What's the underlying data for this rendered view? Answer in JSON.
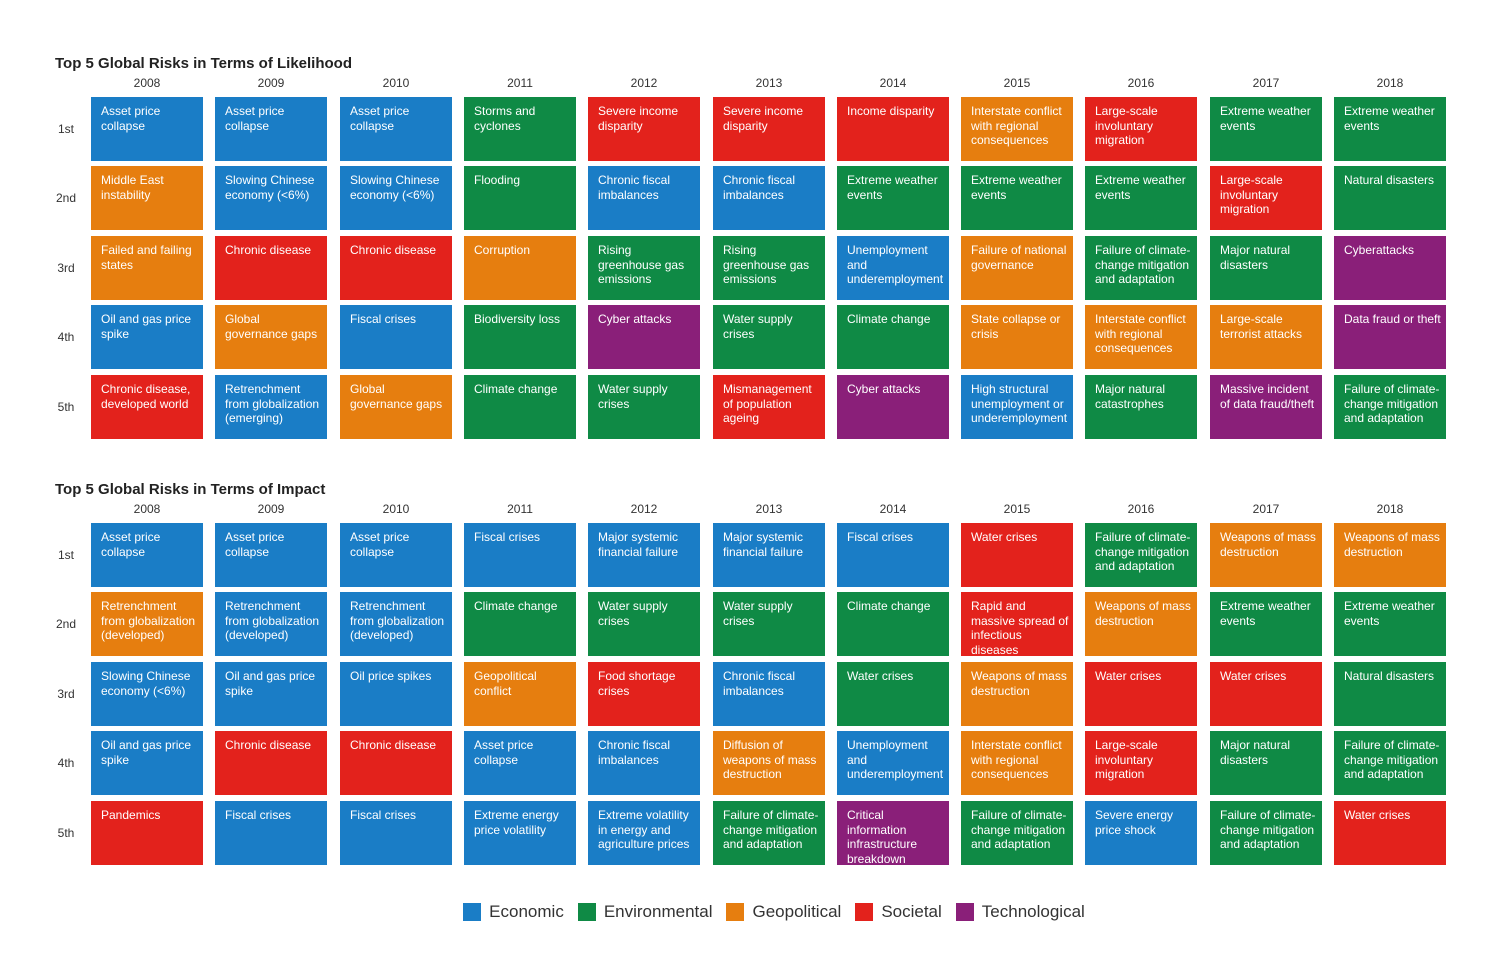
{
  "colors": {
    "Economic": "#1a7dc6",
    "Environmental": "#0f8a45",
    "Geopolitical": "#e67e0f",
    "Societal": "#e3221c",
    "Technological": "#8a1f79"
  },
  "ranks": [
    "1st",
    "2nd",
    "3rd",
    "4th",
    "5th"
  ],
  "years": [
    "2008",
    "2009",
    "2010",
    "2011",
    "2012",
    "2013",
    "2014",
    "2015",
    "2016",
    "2017",
    "2018"
  ],
  "legend": [
    {
      "label": "Economic",
      "color_key": "Economic"
    },
    {
      "label": "Environmental",
      "color_key": "Environmental"
    },
    {
      "label": "Geopolitical",
      "color_key": "Geopolitical"
    },
    {
      "label": "Societal",
      "color_key": "Societal"
    },
    {
      "label": "Technological",
      "color_key": "Technological"
    }
  ],
  "chart_data": [
    {
      "type": "table",
      "title": "Top 5 Global Risks in Terms of Likelihood",
      "columns": [
        [
          {
            "text": "Asset price collapse",
            "category": "Economic"
          },
          {
            "text": "Middle East instability",
            "category": "Geopolitical"
          },
          {
            "text": "Failed and failing states",
            "category": "Geopolitical"
          },
          {
            "text": "Oil and gas price spike",
            "category": "Economic"
          },
          {
            "text": "Chronic disease, developed world",
            "category": "Societal"
          }
        ],
        [
          {
            "text": "Asset price collapse",
            "category": "Economic"
          },
          {
            "text": "Slowing Chinese economy (<6%)",
            "category": "Economic"
          },
          {
            "text": "Chronic disease",
            "category": "Societal"
          },
          {
            "text": "Global governance gaps",
            "category": "Geopolitical"
          },
          {
            "text": "Retrenchment from globalization (emerging)",
            "category": "Economic"
          }
        ],
        [
          {
            "text": "Asset price collapse",
            "category": "Economic"
          },
          {
            "text": "Slowing Chinese economy (<6%)",
            "category": "Economic"
          },
          {
            "text": "Chronic disease",
            "category": "Societal"
          },
          {
            "text": "Fiscal crises",
            "category": "Economic"
          },
          {
            "text": "Global governance gaps",
            "category": "Geopolitical"
          }
        ],
        [
          {
            "text": "Storms and cyclones",
            "category": "Environmental"
          },
          {
            "text": "Flooding",
            "category": "Environmental"
          },
          {
            "text": "Corruption",
            "category": "Geopolitical"
          },
          {
            "text": "Biodiversity loss",
            "category": "Environmental"
          },
          {
            "text": "Climate change",
            "category": "Environmental"
          }
        ],
        [
          {
            "text": "Severe income disparity",
            "category": "Societal"
          },
          {
            "text": "Chronic fiscal imbalances",
            "category": "Economic"
          },
          {
            "text": "Rising greenhouse gas emissions",
            "category": "Environmental"
          },
          {
            "text": "Cyber attacks",
            "category": "Technological"
          },
          {
            "text": "Water supply crises",
            "category": "Environmental"
          }
        ],
        [
          {
            "text": "Severe income disparity",
            "category": "Societal"
          },
          {
            "text": "Chronic fiscal imbalances",
            "category": "Economic"
          },
          {
            "text": "Rising greenhouse gas emissions",
            "category": "Environmental"
          },
          {
            "text": "Water supply crises",
            "category": "Environmental"
          },
          {
            "text": "Mismanagement of population ageing",
            "category": "Societal"
          }
        ],
        [
          {
            "text": "Income disparity",
            "category": "Societal"
          },
          {
            "text": "Extreme weather events",
            "category": "Environmental"
          },
          {
            "text": "Unemployment and underemployment",
            "category": "Economic"
          },
          {
            "text": "Climate change",
            "category": "Environmental"
          },
          {
            "text": "Cyber attacks",
            "category": "Technological"
          }
        ],
        [
          {
            "text": "Interstate conflict with regional consequences",
            "category": "Geopolitical"
          },
          {
            "text": "Extreme weather events",
            "category": "Environmental"
          },
          {
            "text": "Failure of national governance",
            "category": "Geopolitical"
          },
          {
            "text": "State collapse or crisis",
            "category": "Geopolitical"
          },
          {
            "text": "High structural unemployment or underemployment",
            "category": "Economic"
          }
        ],
        [
          {
            "text": "Large-scale involuntary migration",
            "category": "Societal"
          },
          {
            "text": "Extreme weather events",
            "category": "Environmental"
          },
          {
            "text": "Failure of climate-change mitigation and adaptation",
            "category": "Environmental"
          },
          {
            "text": "Interstate conflict with regional consequences",
            "category": "Geopolitical"
          },
          {
            "text": "Major natural catastrophes",
            "category": "Environmental"
          }
        ],
        [
          {
            "text": "Extreme weather events",
            "category": "Environmental"
          },
          {
            "text": "Large-scale involuntary migration",
            "category": "Societal"
          },
          {
            "text": "Major natural disasters",
            "category": "Environmental"
          },
          {
            "text": "Large-scale terrorist attacks",
            "category": "Geopolitical"
          },
          {
            "text": "Massive incident of data fraud/theft",
            "category": "Technological"
          }
        ],
        [
          {
            "text": "Extreme weather events",
            "category": "Environmental"
          },
          {
            "text": "Natural disasters",
            "category": "Environmental"
          },
          {
            "text": "Cyberattacks",
            "category": "Technological"
          },
          {
            "text": "Data fraud or theft",
            "category": "Technological"
          },
          {
            "text": "Failure of climate-change mitigation and adaptation",
            "category": "Environmental"
          }
        ]
      ]
    },
    {
      "type": "table",
      "title": "Top 5 Global Risks in Terms of Impact",
      "columns": [
        [
          {
            "text": "Asset price collapse",
            "category": "Economic"
          },
          {
            "text": "Retrenchment from globalization (developed)",
            "category": "Geopolitical"
          },
          {
            "text": "Slowing Chinese economy (<6%)",
            "category": "Economic"
          },
          {
            "text": "Oil and gas price spike",
            "category": "Economic"
          },
          {
            "text": "Pandemics",
            "category": "Societal"
          }
        ],
        [
          {
            "text": "Asset price collapse",
            "category": "Economic"
          },
          {
            "text": "Retrenchment from globalization (developed)",
            "category": "Economic"
          },
          {
            "text": "Oil and gas price spike",
            "category": "Economic"
          },
          {
            "text": "Chronic disease",
            "category": "Societal"
          },
          {
            "text": "Fiscal crises",
            "category": "Economic"
          }
        ],
        [
          {
            "text": "Asset price collapse",
            "category": "Economic"
          },
          {
            "text": "Retrenchment from globalization (developed)",
            "category": "Economic"
          },
          {
            "text": "Oil price spikes",
            "category": "Economic"
          },
          {
            "text": "Chronic disease",
            "category": "Societal"
          },
          {
            "text": "Fiscal crises",
            "category": "Economic"
          }
        ],
        [
          {
            "text": "Fiscal crises",
            "category": "Economic"
          },
          {
            "text": "Climate change",
            "category": "Environmental"
          },
          {
            "text": "Geopolitical conflict",
            "category": "Geopolitical"
          },
          {
            "text": "Asset price collapse",
            "category": "Economic"
          },
          {
            "text": "Extreme energy price volatility",
            "category": "Economic"
          }
        ],
        [
          {
            "text": "Major systemic financial failure",
            "category": "Economic"
          },
          {
            "text": "Water supply crises",
            "category": "Environmental"
          },
          {
            "text": "Food shortage crises",
            "category": "Societal"
          },
          {
            "text": "Chronic fiscal imbalances",
            "category": "Economic"
          },
          {
            "text": "Extreme volatility in energy and agriculture prices",
            "category": "Economic"
          }
        ],
        [
          {
            "text": "Major systemic financial failure",
            "category": "Economic"
          },
          {
            "text": "Water supply crises",
            "category": "Environmental"
          },
          {
            "text": "Chronic fiscal imbalances",
            "category": "Economic"
          },
          {
            "text": "Diffusion of weapons of mass destruction",
            "category": "Geopolitical"
          },
          {
            "text": "Failure of climate-change mitigation and adaptation",
            "category": "Environmental"
          }
        ],
        [
          {
            "text": "Fiscal crises",
            "category": "Economic"
          },
          {
            "text": "Climate change",
            "category": "Environmental"
          },
          {
            "text": "Water crises",
            "category": "Environmental"
          },
          {
            "text": "Unemployment and underemployment",
            "category": "Economic"
          },
          {
            "text": "Critical information infrastructure breakdown",
            "category": "Technological"
          }
        ],
        [
          {
            "text": "Water crises",
            "category": "Societal"
          },
          {
            "text": "Rapid and massive spread of infectious diseases",
            "category": "Societal"
          },
          {
            "text": "Weapons of mass destruction",
            "category": "Geopolitical"
          },
          {
            "text": "Interstate conflict with regional consequences",
            "category": "Geopolitical"
          },
          {
            "text": "Failure of climate-change mitigation and adaptation",
            "category": "Environmental"
          }
        ],
        [
          {
            "text": "Failure of climate-change mitigation and adaptation",
            "category": "Environmental"
          },
          {
            "text": "Weapons of mass destruction",
            "category": "Geopolitical"
          },
          {
            "text": "Water crises",
            "category": "Societal"
          },
          {
            "text": "Large-scale involuntary migration",
            "category": "Societal"
          },
          {
            "text": "Severe energy price shock",
            "category": "Economic"
          }
        ],
        [
          {
            "text": "Weapons of mass destruction",
            "category": "Geopolitical"
          },
          {
            "text": "Extreme weather events",
            "category": "Environmental"
          },
          {
            "text": "Water crises",
            "category": "Societal"
          },
          {
            "text": "Major natural disasters",
            "category": "Environmental"
          },
          {
            "text": "Failure of climate-change mitigation and adaptation",
            "category": "Environmental"
          }
        ],
        [
          {
            "text": "Weapons of mass destruction",
            "category": "Geopolitical"
          },
          {
            "text": "Extreme weather events",
            "category": "Environmental"
          },
          {
            "text": "Natural disasters",
            "category": "Environmental"
          },
          {
            "text": "Failure of climate-change mitigation and adaptation",
            "category": "Environmental"
          },
          {
            "text": "Water crises",
            "category": "Societal"
          }
        ]
      ]
    }
  ]
}
